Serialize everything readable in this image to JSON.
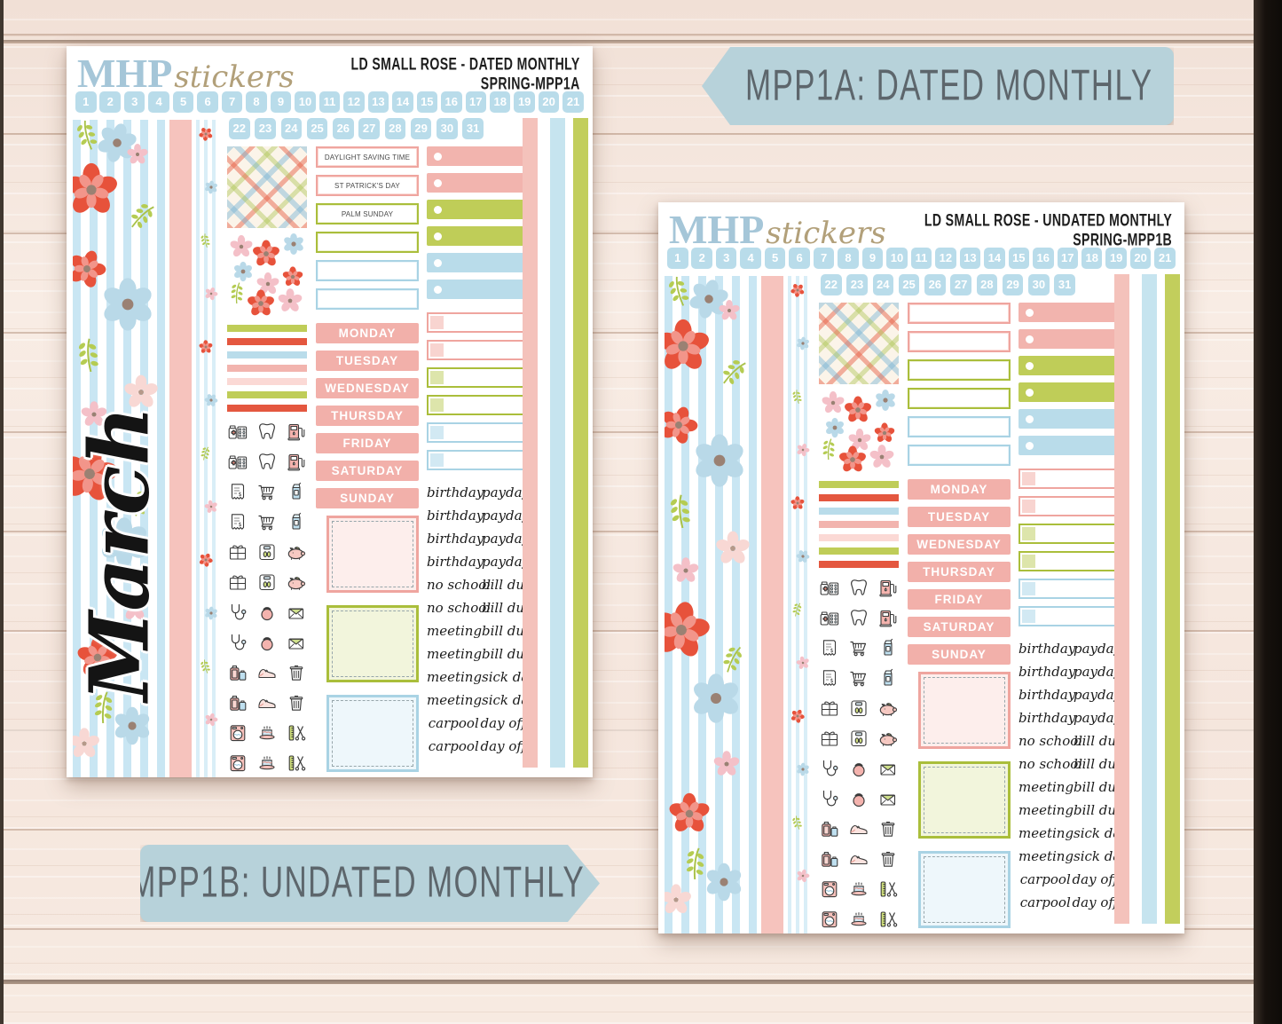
{
  "tags": {
    "a": "MPP1A: DATED MONTHLY",
    "b": "MPP1B: UNDATED MONTHLY"
  },
  "brand": {
    "mhp": "MHP",
    "stickers": "stickers"
  },
  "colors": {
    "pink": "#f2b4ae",
    "pink_light": "#fbd9d5",
    "pink_pale": "#fdeeec",
    "pink_border": "#efa59f",
    "green": "#bfcd58",
    "green_light": "#eef2d6",
    "green_border": "#aabe3b",
    "blue": "#b9dcea",
    "blue_pale": "#eaf5fa",
    "blue_border": "#a9d3e4",
    "coral": "#e4573f",
    "washi_pink": "#f6c3bd",
    "chip_pink": "#f8d4d0",
    "chip_green": "#dde5ab",
    "chip_blue": "#d2e9f3",
    "dash_pink": "#fdeeec",
    "dash_green": "#f2f5dc",
    "dash_blue": "#eef7fb",
    "side_pink": "#f4c2bb",
    "side_blue": "#c6e4ef",
    "side_green": "#c2ce5c",
    "tag_bg": "#b7d2da",
    "tag_text": "#5d666c",
    "logo_blue": "#a5c6d8",
    "logo_tan": "#b2a07a",
    "date_square": "#b9dcea"
  },
  "mini_strips": [
    "green",
    "coral",
    "blue",
    "pink",
    "pink_light",
    "green",
    "coral"
  ],
  "side_strips": [
    "side_pink",
    "side_blue",
    "side_green"
  ],
  "sheets": [
    {
      "id": "MPP1A",
      "title_line1": "LD SMALL ROSE - DATED MONTHLY",
      "title_line2": "SPRING-MPP1A",
      "month_name": "March",
      "dates_row1": [
        "1",
        "2",
        "3",
        "4",
        "5",
        "6",
        "7",
        "8",
        "9",
        "10",
        "11",
        "12",
        "13",
        "14",
        "15",
        "16",
        "17",
        "18",
        "19",
        "20",
        "21"
      ],
      "dates_row2": [
        "22",
        "23",
        "24",
        "25",
        "26",
        "27",
        "28",
        "29",
        "30",
        "31"
      ],
      "label_boxes": [
        {
          "text": "DAYLIGHT SAVING TIME",
          "color": "pink"
        },
        {
          "text": "ST PATRICK'S DAY",
          "color": "pink"
        },
        {
          "text": "PALM SUNDAY",
          "color": "green"
        },
        {
          "text": "",
          "color": "green"
        },
        {
          "text": "",
          "color": "blue"
        },
        {
          "text": "",
          "color": "blue"
        }
      ],
      "checkbox_tabs": [
        "pink",
        "pink",
        "green",
        "green",
        "blue",
        "blue"
      ],
      "weekdays": [
        "MONDAY",
        "TUESDAY",
        "WEDNESDAY",
        "THURSDAY",
        "FRIDAY",
        "SATURDAY",
        "SUNDAY"
      ],
      "habit_boxes": [
        "pink",
        "pink",
        "green",
        "green",
        "blue",
        "blue"
      ],
      "dashed_boxes": [
        "pink",
        "green",
        "blue"
      ],
      "script_words": [
        [
          "birthday",
          "payday"
        ],
        [
          "birthday",
          "payday"
        ],
        [
          "birthday",
          "payday"
        ],
        [
          "birthday",
          "payday"
        ],
        [
          "no school",
          "bill due"
        ],
        [
          "no school",
          "bill due"
        ],
        [
          "meeting",
          "bill due"
        ],
        [
          "meeting",
          "bill due"
        ],
        [
          "meeting",
          "sick day"
        ],
        [
          "meeting",
          "sick day"
        ],
        [
          "carpool",
          "day off"
        ],
        [
          "carpool",
          "day off"
        ]
      ],
      "icon_rows": [
        [
          "pills",
          "tooth",
          "gas-pump"
        ],
        [
          "pills",
          "tooth",
          "gas-pump"
        ],
        [
          "receipt",
          "cart",
          "juice"
        ],
        [
          "receipt",
          "cart",
          "juice"
        ],
        [
          "gift",
          "scale",
          "piggy-bank"
        ],
        [
          "gift",
          "scale",
          "piggy-bank"
        ],
        [
          "stethoscope",
          "kettlebell",
          "envelope"
        ],
        [
          "stethoscope",
          "kettlebell",
          "envelope"
        ],
        [
          "luggage",
          "sneaker",
          "trash"
        ],
        [
          "luggage",
          "sneaker",
          "trash"
        ],
        [
          "washer",
          "cake",
          "grooming"
        ],
        [
          "washer",
          "cake",
          "grooming"
        ]
      ]
    },
    {
      "id": "MPP1B",
      "title_line1": "LD SMALL ROSE - UNDATED MONTHLY",
      "title_line2": "SPRING-MPP1B",
      "month_name": "",
      "dates_row1": [
        "1",
        "2",
        "3",
        "4",
        "5",
        "6",
        "7",
        "8",
        "9",
        "10",
        "11",
        "12",
        "13",
        "14",
        "15",
        "16",
        "17",
        "18",
        "19",
        "20",
        "21"
      ],
      "dates_row2": [
        "22",
        "23",
        "24",
        "25",
        "26",
        "27",
        "28",
        "29",
        "30",
        "31"
      ],
      "label_boxes": [
        {
          "text": "",
          "color": "pink"
        },
        {
          "text": "",
          "color": "pink"
        },
        {
          "text": "",
          "color": "green"
        },
        {
          "text": "",
          "color": "green"
        },
        {
          "text": "",
          "color": "blue"
        },
        {
          "text": "",
          "color": "blue"
        }
      ],
      "checkbox_tabs": [
        "pink",
        "pink",
        "green",
        "green",
        "blue",
        "blue"
      ],
      "weekdays": [
        "MONDAY",
        "TUESDAY",
        "WEDNESDAY",
        "THURSDAY",
        "FRIDAY",
        "SATURDAY",
        "SUNDAY"
      ],
      "habit_boxes": [
        "pink",
        "pink",
        "green",
        "green",
        "blue",
        "blue"
      ],
      "dashed_boxes": [
        "pink",
        "green",
        "blue"
      ],
      "script_words": [
        [
          "birthday",
          "payday"
        ],
        [
          "birthday",
          "payday"
        ],
        [
          "birthday",
          "payday"
        ],
        [
          "birthday",
          "payday"
        ],
        [
          "no school",
          "bill due"
        ],
        [
          "no school",
          "bill due"
        ],
        [
          "meeting",
          "bill due"
        ],
        [
          "meeting",
          "bill due"
        ],
        [
          "meeting",
          "sick day"
        ],
        [
          "meeting",
          "sick day"
        ],
        [
          "carpool",
          "day off"
        ],
        [
          "carpool",
          "day off"
        ]
      ],
      "icon_rows": [
        [
          "pills",
          "tooth",
          "gas-pump"
        ],
        [
          "pills",
          "tooth",
          "gas-pump"
        ],
        [
          "receipt",
          "cart",
          "juice"
        ],
        [
          "receipt",
          "cart",
          "juice"
        ],
        [
          "gift",
          "scale",
          "piggy-bank"
        ],
        [
          "gift",
          "scale",
          "piggy-bank"
        ],
        [
          "stethoscope",
          "kettlebell",
          "envelope"
        ],
        [
          "stethoscope",
          "kettlebell",
          "envelope"
        ],
        [
          "luggage",
          "sneaker",
          "trash"
        ],
        [
          "luggage",
          "sneaker",
          "trash"
        ],
        [
          "washer",
          "cake",
          "grooming"
        ],
        [
          "washer",
          "cake",
          "grooming"
        ]
      ]
    }
  ]
}
